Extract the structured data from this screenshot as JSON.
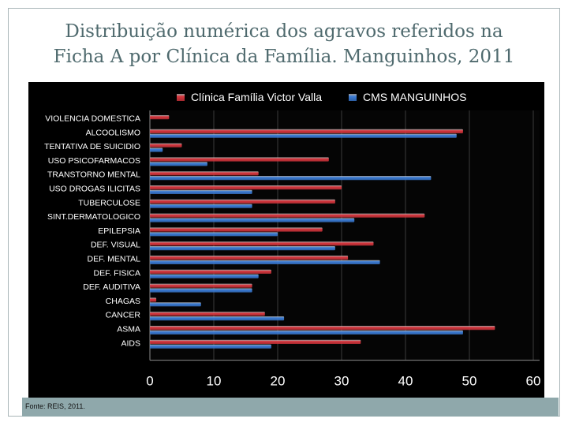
{
  "slide": {
    "title_line1": "Distribuição numérica dos agravos referidos na",
    "title_line2": "Ficha A por Clínica da Família. Manguinhos, 2011",
    "source": "Fonte: REIS, 2011."
  },
  "chart_data": {
    "type": "bar",
    "orientation": "horizontal",
    "categories": [
      "VIOLENCIA DOMESTICA",
      "ALCOOLISMO",
      "TENTATIVA DE SUICIDIO",
      "USO PSICOFARMACOS",
      "TRANSTORNO MENTAL",
      "USO DROGAS ILICITAS",
      "TUBERCULOSE",
      "SINT.DERMATOLOGICO",
      "EPILEPSIA",
      "DEF. VISUAL",
      "DEF. MENTAL",
      "DEF. FISICA",
      "DEF. AUDITIVA",
      "CHAGAS",
      "CANCER",
      "ASMA",
      "AIDS"
    ],
    "series": [
      {
        "name": "Clínica Família Victor Valla",
        "color": "#d9363e",
        "values": [
          3,
          49,
          5,
          28,
          17,
          30,
          29,
          43,
          27,
          35,
          31,
          19,
          16,
          1,
          18,
          54,
          33
        ]
      },
      {
        "name": "CMS MANGUINHOS",
        "color": "#3b7dd8",
        "values": [
          0,
          48,
          2,
          9,
          44,
          16,
          16,
          32,
          20,
          29,
          36,
          17,
          16,
          8,
          21,
          49,
          19
        ]
      }
    ],
    "xlim": [
      0,
      60
    ],
    "xticks": [
      "0",
      "10",
      "20",
      "30",
      "40",
      "50",
      "60"
    ],
    "legend": "top",
    "grid": true
  }
}
